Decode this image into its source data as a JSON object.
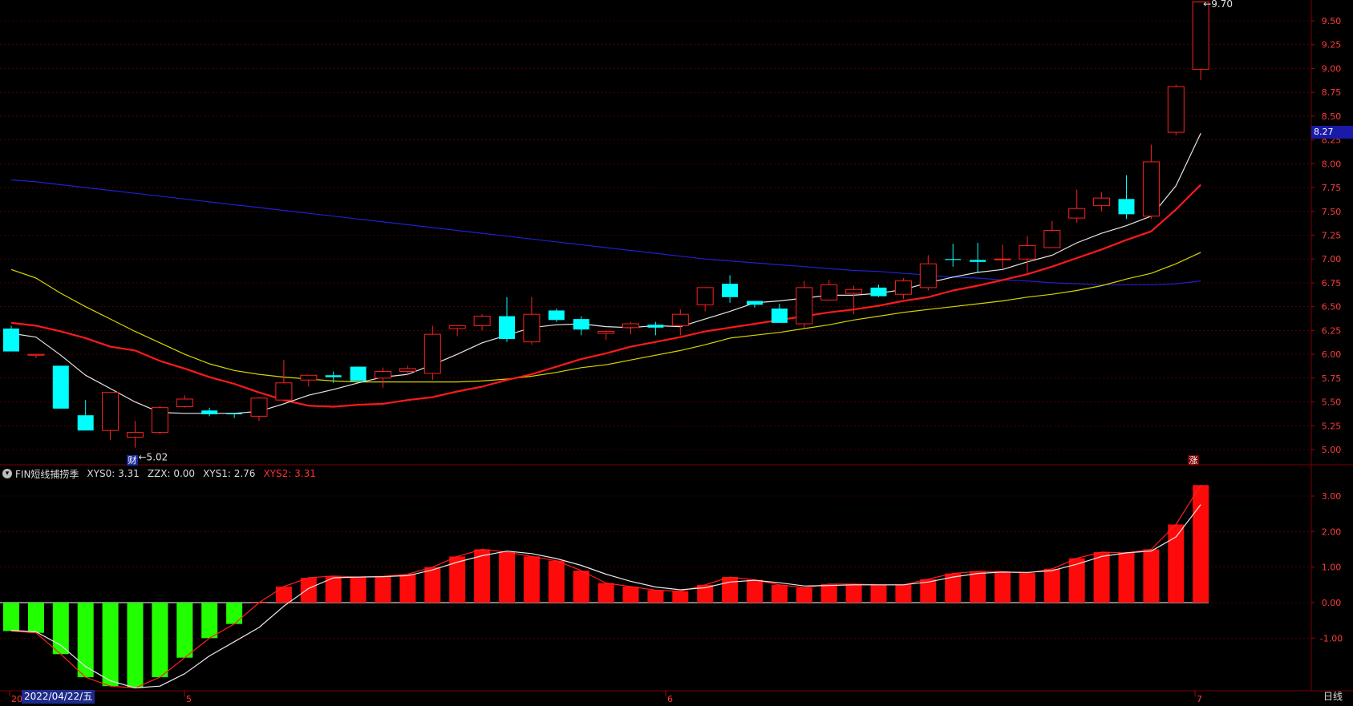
{
  "colors": {
    "up": "#ff2020",
    "down": "#00ffff",
    "ma5": "#e6e6e6",
    "ma10": "#ff1a1a",
    "ma20": "#d6d600",
    "ma60": "#2020d0",
    "posbar": "#ff0a0a",
    "negbar": "#22ff00",
    "grid": "#7a0000"
  },
  "main": {
    "y_ticks": [
      "5.00",
      "5.25",
      "5.50",
      "5.75",
      "6.00",
      "6.25",
      "6.50",
      "6.75",
      "7.00",
      "7.25",
      "7.50",
      "7.75",
      "8.00",
      "8.25",
      "8.50",
      "8.75",
      "9.00",
      "9.25",
      "9.50"
    ],
    "price_tag": "8.27",
    "low_label": "5.02",
    "high_label": "9.70",
    "marker_cai": "财",
    "marker_zhang": "涨"
  },
  "indicator": {
    "name": "FIN短线捕捞季",
    "xys0": "XYS0: 3.31",
    "zzx": "ZZX: 0.00",
    "xys1": "XYS1: 2.76",
    "xys2": "XYS2: 3.31",
    "y_ticks": [
      "3.00",
      "2.00",
      "1.00",
      "0.00",
      "-1.00"
    ]
  },
  "footer": {
    "date": "2022/04/22/五",
    "first_label": "20",
    "m5": "5",
    "m6": "6",
    "m7": "7",
    "period": "日线"
  },
  "chart_data": {
    "type": "candlestick",
    "ohlc": [
      [
        6.27,
        6.3,
        6.03,
        6.03
      ],
      [
        5.99,
        6.0,
        5.96,
        6.0
      ],
      [
        5.88,
        5.88,
        5.43,
        5.43
      ],
      [
        5.36,
        5.52,
        5.2,
        5.2
      ],
      [
        5.2,
        5.6,
        5.1,
        5.6
      ],
      [
        5.13,
        5.3,
        5.02,
        5.18
      ],
      [
        5.18,
        5.46,
        5.16,
        5.44
      ],
      [
        5.45,
        5.57,
        5.44,
        5.53
      ],
      [
        5.41,
        5.44,
        5.35,
        5.37
      ],
      [
        5.38,
        5.38,
        5.33,
        5.37
      ],
      [
        5.35,
        5.55,
        5.3,
        5.54
      ],
      [
        5.52,
        5.94,
        5.52,
        5.7
      ],
      [
        5.73,
        5.78,
        5.66,
        5.78
      ],
      [
        5.78,
        5.82,
        5.7,
        5.76
      ],
      [
        5.87,
        5.87,
        5.72,
        5.72
      ],
      [
        5.75,
        5.86,
        5.65,
        5.82
      ],
      [
        5.82,
        5.88,
        5.78,
        5.85
      ],
      [
        5.8,
        6.3,
        5.73,
        6.21
      ],
      [
        6.27,
        6.3,
        6.19,
        6.3
      ],
      [
        6.3,
        6.42,
        6.25,
        6.4
      ],
      [
        6.4,
        6.6,
        6.13,
        6.16
      ],
      [
        6.13,
        6.6,
        6.1,
        6.42
      ],
      [
        6.46,
        6.48,
        6.34,
        6.36
      ],
      [
        6.37,
        6.4,
        6.2,
        6.26
      ],
      [
        6.22,
        6.25,
        6.15,
        6.24
      ],
      [
        6.28,
        6.34,
        6.21,
        6.32
      ],
      [
        6.31,
        6.34,
        6.2,
        6.28
      ],
      [
        6.3,
        6.47,
        6.2,
        6.42
      ],
      [
        6.52,
        6.69,
        6.45,
        6.7
      ],
      [
        6.74,
        6.83,
        6.54,
        6.6
      ],
      [
        6.56,
        6.56,
        6.49,
        6.52
      ],
      [
        6.48,
        6.53,
        6.34,
        6.33
      ],
      [
        6.32,
        6.77,
        6.28,
        6.7
      ],
      [
        6.57,
        6.78,
        6.57,
        6.73
      ],
      [
        6.64,
        6.72,
        6.42,
        6.68
      ],
      [
        6.7,
        6.73,
        6.6,
        6.61
      ],
      [
        6.63,
        6.8,
        6.58,
        6.77
      ],
      [
        6.7,
        7.04,
        6.67,
        6.95
      ],
      [
        7.0,
        7.16,
        6.92,
        6.99
      ],
      [
        6.99,
        7.17,
        6.86,
        6.97
      ],
      [
        7.0,
        7.15,
        6.9,
        7.0
      ],
      [
        7.0,
        7.24,
        6.85,
        7.14
      ],
      [
        7.12,
        7.4,
        7.12,
        7.3
      ],
      [
        7.43,
        7.73,
        7.38,
        7.53
      ],
      [
        7.56,
        7.7,
        7.5,
        7.64
      ],
      [
        7.63,
        7.88,
        7.42,
        7.47
      ],
      [
        7.45,
        8.2,
        7.42,
        8.02
      ],
      [
        8.33,
        8.83,
        8.3,
        8.81
      ],
      [
        8.99,
        9.7,
        8.88,
        9.7
      ]
    ],
    "ma5": [
      6.22,
      6.18,
      5.99,
      5.78,
      5.64,
      5.5,
      5.39,
      5.38,
      5.38,
      5.38,
      5.4,
      5.48,
      5.57,
      5.63,
      5.7,
      5.76,
      5.79,
      5.89,
      6.0,
      6.12,
      6.2,
      6.28,
      6.31,
      6.32,
      6.29,
      6.28,
      6.3,
      6.29,
      6.37,
      6.45,
      6.54,
      6.56,
      6.59,
      6.62,
      6.62,
      6.64,
      6.68,
      6.75,
      6.81,
      6.86,
      6.89,
      6.97,
      7.04,
      7.17,
      7.27,
      7.35,
      7.45,
      7.77,
      8.32
    ],
    "ma10": [
      6.33,
      6.3,
      6.24,
      6.17,
      6.08,
      6.04,
      5.93,
      5.85,
      5.76,
      5.69,
      5.6,
      5.52,
      5.46,
      5.45,
      5.47,
      5.48,
      5.52,
      5.55,
      5.61,
      5.66,
      5.73,
      5.79,
      5.87,
      5.95,
      6.01,
      6.08,
      6.13,
      6.18,
      6.24,
      6.28,
      6.32,
      6.36,
      6.4,
      6.44,
      6.47,
      6.51,
      6.56,
      6.6,
      6.67,
      6.72,
      6.78,
      6.84,
      6.92,
      7.01,
      7.1,
      7.2,
      7.29,
      7.52,
      7.78
    ],
    "ma20": [
      6.89,
      6.8,
      6.64,
      6.5,
      6.37,
      6.24,
      6.12,
      6.0,
      5.9,
      5.83,
      5.79,
      5.76,
      5.74,
      5.72,
      5.71,
      5.71,
      5.71,
      5.71,
      5.71,
      5.72,
      5.74,
      5.77,
      5.81,
      5.86,
      5.89,
      5.94,
      5.99,
      6.04,
      6.1,
      6.17,
      6.2,
      6.23,
      6.27,
      6.31,
      6.36,
      6.4,
      6.44,
      6.47,
      6.5,
      6.53,
      6.56,
      6.6,
      6.63,
      6.67,
      6.72,
      6.79,
      6.85,
      6.95,
      7.07
    ],
    "ma60": [
      7.83,
      7.81,
      7.78,
      7.75,
      7.72,
      7.69,
      7.66,
      7.63,
      7.6,
      7.57,
      7.54,
      7.51,
      7.48,
      7.45,
      7.42,
      7.39,
      7.36,
      7.33,
      7.3,
      7.27,
      7.24,
      7.21,
      7.18,
      7.15,
      7.12,
      7.09,
      7.06,
      7.03,
      7.0,
      6.98,
      6.96,
      6.94,
      6.92,
      6.9,
      6.88,
      6.87,
      6.85,
      6.83,
      6.81,
      6.8,
      6.78,
      6.77,
      6.75,
      6.74,
      6.73,
      6.73,
      6.73,
      6.74,
      6.77
    ],
    "xys0": [
      -0.8,
      -0.85,
      -1.45,
      -2.1,
      -2.35,
      -2.4,
      -2.1,
      -1.55,
      -1.0,
      -0.6,
      0.0,
      0.45,
      0.7,
      0.75,
      0.72,
      0.74,
      0.8,
      1.0,
      1.3,
      1.5,
      1.42,
      1.3,
      1.18,
      0.9,
      0.55,
      0.45,
      0.35,
      0.32,
      0.5,
      0.72,
      0.64,
      0.5,
      0.42,
      0.52,
      0.52,
      0.5,
      0.5,
      0.66,
      0.82,
      0.88,
      0.87,
      0.83,
      0.95,
      1.25,
      1.42,
      1.4,
      1.5,
      2.2,
      3.31
    ],
    "xys1": [
      -0.78,
      -0.82,
      -1.2,
      -1.8,
      -2.2,
      -2.4,
      -2.35,
      -2.0,
      -1.5,
      -1.1,
      -0.7,
      -0.1,
      0.4,
      0.7,
      0.72,
      0.73,
      0.76,
      0.92,
      1.14,
      1.32,
      1.45,
      1.38,
      1.24,
      1.05,
      0.8,
      0.6,
      0.44,
      0.36,
      0.42,
      0.58,
      0.63,
      0.56,
      0.47,
      0.48,
      0.5,
      0.5,
      0.5,
      0.58,
      0.72,
      0.82,
      0.86,
      0.85,
      0.9,
      1.08,
      1.3,
      1.4,
      1.45,
      1.85,
      2.76
    ],
    "xys2": [
      -0.8,
      -0.85,
      -1.45,
      -2.1,
      -2.35,
      -2.4,
      -2.1,
      -1.55,
      -1.0,
      -0.6,
      0.0,
      0.45,
      0.7,
      0.75,
      0.72,
      0.74,
      0.8,
      1.0,
      1.3,
      1.5,
      1.42,
      1.3,
      1.18,
      0.9,
      0.55,
      0.45,
      0.35,
      0.32,
      0.5,
      0.72,
      0.64,
      0.5,
      0.42,
      0.52,
      0.52,
      0.5,
      0.5,
      0.66,
      0.82,
      0.88,
      0.87,
      0.83,
      0.95,
      1.25,
      1.42,
      1.4,
      1.5,
      2.2,
      3.31
    ]
  }
}
